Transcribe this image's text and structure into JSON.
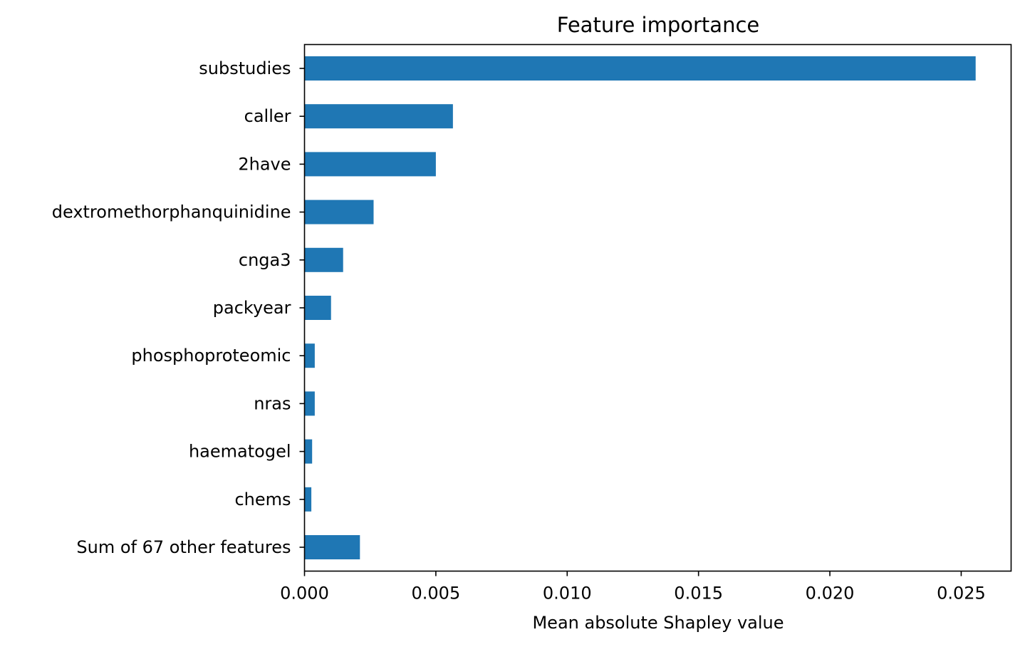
{
  "chart_data": {
    "type": "bar",
    "orientation": "horizontal",
    "title": "Feature importance",
    "xlabel": "Mean absolute Shapley value",
    "ylabel": "",
    "xlim": [
      0,
      0.0269
    ],
    "xticks": [
      0.0,
      0.005,
      0.01,
      0.015,
      0.02,
      0.025
    ],
    "xtick_labels": [
      "0.000",
      "0.005",
      "0.010",
      "0.015",
      "0.020",
      "0.025"
    ],
    "categories": [
      "substudies",
      "caller",
      "2have",
      "dextromethorphanquinidine",
      "cnga3",
      "packyear",
      "phosphoproteomic",
      "nras",
      "haematogel",
      "chems",
      "Sum of 67 other features"
    ],
    "values": [
      0.02555,
      0.00565,
      0.005,
      0.00263,
      0.00147,
      0.00101,
      0.00039,
      0.00039,
      0.00029,
      0.00026,
      0.00211
    ],
    "bar_color": "#1f77b4",
    "grid": false,
    "legend": "none"
  }
}
